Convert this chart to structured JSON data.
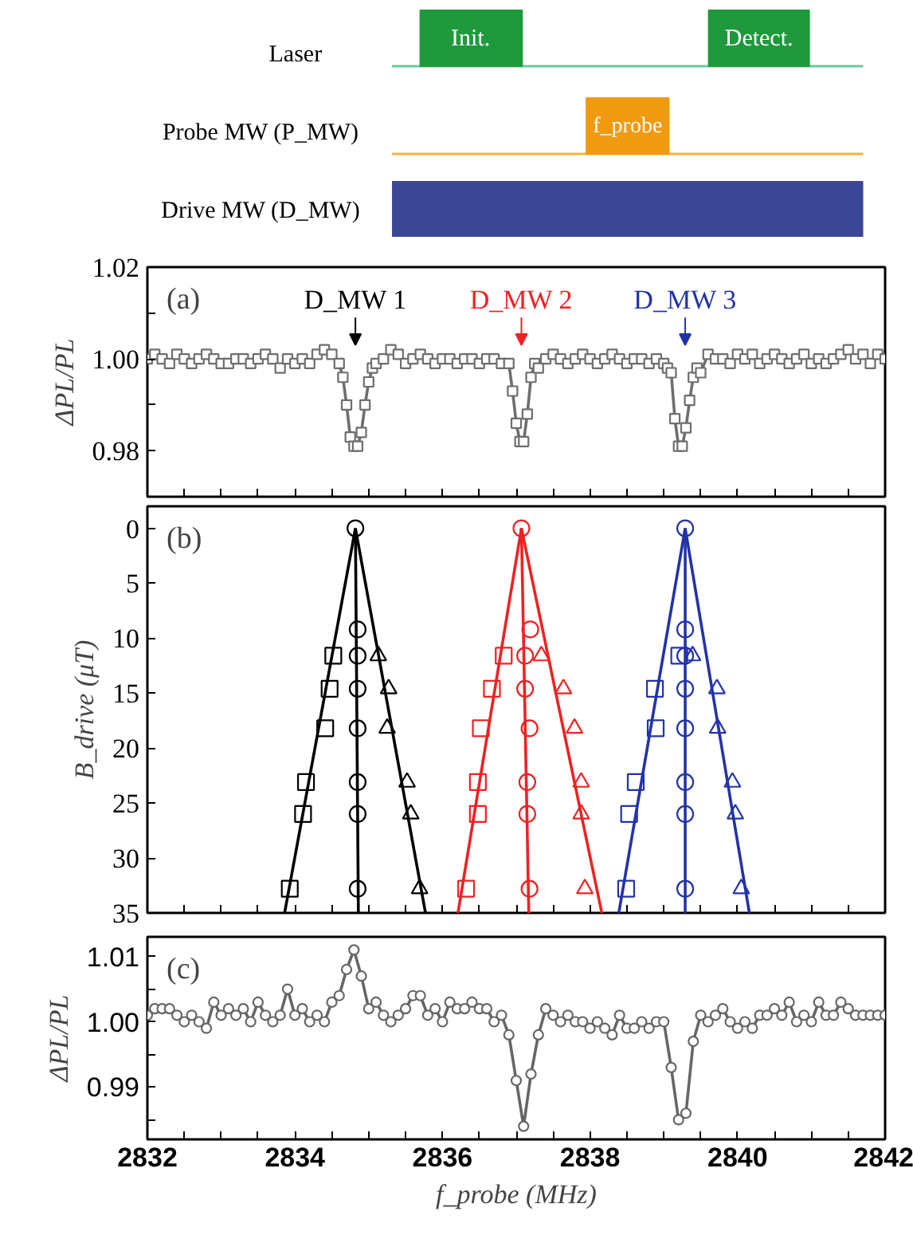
{
  "chart_data": [
    {
      "type": "other",
      "annotations": [
        "Laser",
        "Init.",
        "Detect.",
        "Probe MW (P_MW)",
        "f_probe",
        "Drive MW (D_MW)"
      ]
    },
    {
      "type": "line",
      "marker": "square",
      "color": "#6e6e6e",
      "ylabel": "ΔPL/PL",
      "tick_labels": "y",
      "xlim": [
        2832,
        2842
      ],
      "ylim": [
        0.97,
        1.02
      ],
      "xticks": [
        2832,
        {
          "value": 2832.5,
          "label": null
        },
        {
          "value": 2833,
          "label": null
        },
        {
          "value": 2833.5,
          "label": null
        },
        2834,
        {
          "value": 2834.5,
          "label": null
        },
        {
          "value": 2835,
          "label": null
        },
        {
          "value": 2835.5,
          "label": null
        },
        2836,
        {
          "value": 2836.5,
          "label": null
        },
        {
          "value": 2837,
          "label": null
        },
        {
          "value": 2837.5,
          "label": null
        },
        2838,
        {
          "value": 2838.5,
          "label": null
        },
        {
          "value": 2839,
          "label": null
        },
        {
          "value": 2839.5,
          "label": null
        },
        2840,
        {
          "value": 2840.5,
          "label": null
        },
        {
          "value": 2841,
          "label": null
        },
        {
          "value": 2841.5,
          "label": null
        },
        2842
      ],
      "yticks": [
        {
          "value": 0.98,
          "label": "0.98"
        },
        {
          "value": 0.99,
          "label": null
        },
        {
          "value": 1.0,
          "label": "1.00"
        },
        {
          "value": 1.01,
          "label": null
        },
        {
          "value": 1.02,
          "label": "1.02"
        }
      ],
      "annotations": [
        "(a)",
        "D_MW 1",
        "D_MW 2",
        "D_MW 3"
      ],
      "x": [
        2832.0,
        2832.1,
        2832.2,
        2832.3,
        2832.4,
        2832.5,
        2832.6,
        2832.7,
        2832.8,
        2832.9,
        2833.0,
        2833.1,
        2833.2,
        2833.3,
        2833.4,
        2833.5,
        2833.6,
        2833.7,
        2833.8,
        2833.9,
        2834.0,
        2834.1,
        2834.2,
        2834.3,
        2834.4,
        2834.5,
        2834.6,
        2834.65,
        2834.7,
        2834.75,
        2834.8,
        2834.85,
        2834.9,
        2834.95,
        2835.0,
        2835.05,
        2835.1,
        2835.2,
        2835.3,
        2835.4,
        2835.5,
        2835.6,
        2835.7,
        2835.8,
        2835.9,
        2836.0,
        2836.1,
        2836.2,
        2836.3,
        2836.4,
        2836.5,
        2836.6,
        2836.7,
        2836.8,
        2836.9,
        2836.95,
        2837.0,
        2837.05,
        2837.1,
        2837.15,
        2837.2,
        2837.25,
        2837.3,
        2837.4,
        2837.5,
        2837.6,
        2837.7,
        2837.8,
        2837.9,
        2838.0,
        2838.1,
        2838.2,
        2838.3,
        2838.4,
        2838.5,
        2838.6,
        2838.7,
        2838.8,
        2838.9,
        2839.0,
        2839.05,
        2839.1,
        2839.15,
        2839.2,
        2839.25,
        2839.3,
        2839.35,
        2839.4,
        2839.45,
        2839.5,
        2839.6,
        2839.7,
        2839.8,
        2839.9,
        2840.0,
        2840.1,
        2840.2,
        2840.3,
        2840.4,
        2840.5,
        2840.6,
        2840.7,
        2840.8,
        2840.9,
        2841.0,
        2841.1,
        2841.2,
        2841.3,
        2841.4,
        2841.5,
        2841.6,
        2841.7,
        2841.8,
        2841.9,
        2842.0
      ],
      "values": [
        1.0,
        1.001,
        1.0,
        0.999,
        1.001,
        1.0,
        0.999,
        1.0,
        1.001,
        1.0,
        0.999,
        0.999,
        1.0,
        1.0,
        0.999,
        1.0,
        1.001,
        1.0,
        0.998,
        1.0,
        0.999,
        1.0,
        0.999,
        1.001,
        1.002,
        1.001,
        0.999,
        0.996,
        0.99,
        0.983,
        0.981,
        0.981,
        0.984,
        0.99,
        0.995,
        0.998,
        0.999,
        1.0,
        1.002,
        1.001,
        0.999,
        1.0,
        1.001,
        1.0,
        0.999,
        1.0,
        1.0,
        0.999,
        1.0,
        1.0,
        0.999,
        1.0,
        1.0,
        0.999,
        0.999,
        0.993,
        0.986,
        0.982,
        0.982,
        0.988,
        0.996,
        0.999,
        0.998,
        1.0,
        1.001,
        1.0,
        0.999,
        1.0,
        1.001,
        1.0,
        0.999,
        1.0,
        1.001,
        1.0,
        0.999,
        1.0,
        1.0,
        0.999,
        1.0,
        0.999,
        0.998,
        0.997,
        0.987,
        0.981,
        0.981,
        0.985,
        0.991,
        0.996,
        0.998,
        0.997,
        1.001,
        1.0,
        1.0,
        0.999,
        1.001,
        1.0,
        1.001,
        0.999,
        1.0,
        1.001,
        1.0,
        0.999,
        1.0,
        1.001,
        0.999,
        1.0,
        0.999,
        1.0,
        1.001,
        1.002,
        1.0,
        1.001,
        0.999,
        1.001,
        1.0
      ]
    },
    {
      "type": "scatter",
      "ylabel": "B_drive (μT)",
      "tick_labels": "y",
      "xlim": [
        2832,
        2842
      ],
      "ylim": [
        35,
        -2
      ],
      "xticks": [
        2832,
        {
          "value": 2832.5,
          "label": null
        },
        {
          "value": 2833,
          "label": null
        },
        {
          "value": 2833.5,
          "label": null
        },
        2834,
        {
          "value": 2834.5,
          "label": null
        },
        {
          "value": 2835,
          "label": null
        },
        {
          "value": 2835.5,
          "label": null
        },
        2836,
        {
          "value": 2836.5,
          "label": null
        },
        {
          "value": 2837,
          "label": null
        },
        {
          "value": 2837.5,
          "label": null
        },
        2838,
        {
          "value": 2838.5,
          "label": null
        },
        {
          "value": 2839,
          "label": null
        },
        {
          "value": 2839.5,
          "label": null
        },
        2840,
        {
          "value": 2840.5,
          "label": null
        },
        {
          "value": 2841,
          "label": null
        },
        {
          "value": 2841.5,
          "label": null
        },
        2842
      ],
      "yticks": [
        0,
        5,
        10,
        15,
        20,
        25,
        30,
        35
      ],
      "annotations": [
        "(b)"
      ],
      "series": [
        {
          "type": "scatter",
          "marker": "circle",
          "color": "#000000",
          "x": [
            2834.82,
            2834.85,
            2834.85,
            2834.85,
            2834.85,
            2834.85,
            2834.85,
            2834.85
          ],
          "values": [
            0,
            9.2,
            11.6,
            14.6,
            18.2,
            23.1,
            26.0,
            32.8
          ]
        },
        {
          "type": "scatter",
          "marker": "square",
          "color": "#000000",
          "x": [
            2834.52,
            2834.47,
            2834.41,
            2834.15,
            2834.11,
            2833.93
          ],
          "values": [
            11.6,
            14.6,
            18.2,
            23.1,
            26.0,
            32.8
          ]
        },
        {
          "type": "scatter",
          "marker": "triangle",
          "color": "#000000",
          "x": [
            2835.13,
            2835.27,
            2835.25,
            2835.52,
            2835.57,
            2835.69
          ],
          "values": [
            11.6,
            14.6,
            18.2,
            23.1,
            26.0,
            32.8
          ]
        },
        {
          "type": "line",
          "marker": "none",
          "color": "#000000",
          "x": [
            2834.82,
            2833.86
          ],
          "values": [
            0,
            35
          ]
        },
        {
          "type": "line",
          "marker": "none",
          "color": "#000000",
          "x": [
            2834.82,
            2834.86
          ],
          "values": [
            0,
            35
          ]
        },
        {
          "type": "line",
          "marker": "none",
          "color": "#000000",
          "x": [
            2834.82,
            2835.77
          ],
          "values": [
            0,
            35
          ]
        },
        {
          "type": "scatter",
          "marker": "circle",
          "color": "#ee2222",
          "x": [
            2837.07,
            2837.19,
            2837.12,
            2837.12,
            2837.18,
            2837.15,
            2837.15,
            2837.18
          ],
          "values": [
            0,
            9.2,
            11.6,
            14.6,
            18.2,
            23.1,
            26.0,
            32.8
          ]
        },
        {
          "type": "scatter",
          "marker": "square",
          "color": "#ee2222",
          "x": [
            2836.83,
            2836.67,
            2836.52,
            2836.48,
            2836.48,
            2836.32
          ],
          "values": [
            11.6,
            14.6,
            18.2,
            23.1,
            26.0,
            32.8
          ]
        },
        {
          "type": "scatter",
          "marker": "triangle",
          "color": "#ee2222",
          "x": [
            2837.34,
            2837.64,
            2837.79,
            2837.88,
            2837.88,
            2837.93
          ],
          "values": [
            11.6,
            14.6,
            18.2,
            23.1,
            26.0,
            32.8
          ]
        },
        {
          "type": "line",
          "marker": "none",
          "color": "#ee2222",
          "x": [
            2837.07,
            2836.21
          ],
          "values": [
            0,
            35
          ]
        },
        {
          "type": "line",
          "marker": "none",
          "color": "#ee2222",
          "x": [
            2837.07,
            2837.17
          ],
          "values": [
            0,
            35
          ]
        },
        {
          "type": "line",
          "marker": "none",
          "color": "#ee2222",
          "x": [
            2837.07,
            2838.16
          ],
          "values": [
            0,
            35
          ]
        },
        {
          "type": "scatter",
          "marker": "circle",
          "color": "#2233aa",
          "x": [
            2839.29,
            2839.29,
            2839.29,
            2839.29,
            2839.29,
            2839.29,
            2839.29,
            2839.29
          ],
          "values": [
            0,
            9.2,
            11.6,
            14.6,
            18.2,
            23.1,
            26.0,
            32.8
          ]
        },
        {
          "type": "scatter",
          "marker": "square",
          "color": "#2233aa",
          "x": [
            2839.21,
            2838.88,
            2838.89,
            2838.62,
            2838.53,
            2838.49
          ],
          "values": [
            11.6,
            14.6,
            18.2,
            23.1,
            26.0,
            32.8
          ]
        },
        {
          "type": "scatter",
          "marker": "triangle",
          "color": "#2233aa",
          "x": [
            2839.39,
            2839.72,
            2839.73,
            2839.93,
            2839.97,
            2840.05
          ],
          "values": [
            11.6,
            14.6,
            18.2,
            23.1,
            26.0,
            32.8
          ]
        },
        {
          "type": "line",
          "marker": "none",
          "color": "#2233aa",
          "x": [
            2839.29,
            2838.39
          ],
          "values": [
            0,
            35
          ]
        },
        {
          "type": "line",
          "marker": "none",
          "color": "#2233aa",
          "x": [
            2839.29,
            2839.29
          ],
          "values": [
            0,
            35
          ]
        },
        {
          "type": "line",
          "marker": "none",
          "color": "#2233aa",
          "x": [
            2839.29,
            2840.16
          ],
          "values": [
            0,
            35
          ]
        }
      ]
    },
    {
      "type": "line",
      "marker": "circle",
      "color": "#666666",
      "xlabel": "f_probe (MHz)",
      "ylabel": "ΔPL/PL",
      "xlim": [
        2832,
        2842
      ],
      "ylim": [
        0.982,
        1.013
      ],
      "xticks": [
        2832,
        {
          "value": 2832.5,
          "label": null
        },
        {
          "value": 2833,
          "label": null
        },
        {
          "value": 2833.5,
          "label": null
        },
        2834,
        {
          "value": 2834.5,
          "label": null
        },
        {
          "value": 2835,
          "label": null
        },
        {
          "value": 2835.5,
          "label": null
        },
        2836,
        {
          "value": 2836.5,
          "label": null
        },
        {
          "value": 2837,
          "label": null
        },
        {
          "value": 2837.5,
          "label": null
        },
        2838,
        {
          "value": 2838.5,
          "label": null
        },
        {
          "value": 2839,
          "label": null
        },
        {
          "value": 2839.5,
          "label": null
        },
        2840,
        {
          "value": 2840.5,
          "label": null
        },
        {
          "value": 2841,
          "label": null
        },
        {
          "value": 2841.5,
          "label": null
        },
        2842
      ],
      "yticks": [
        {
          "value": 0.985,
          "label": null
        },
        {
          "value": 0.99,
          "label": "0.99"
        },
        {
          "value": 0.995,
          "label": null
        },
        {
          "value": 1.0,
          "label": "1.00"
        },
        {
          "value": 1.005,
          "label": null
        },
        {
          "value": 1.01,
          "label": "1.01"
        }
      ],
      "annotations": [
        "(c)"
      ],
      "x": [
        2832.0,
        2832.1,
        2832.2,
        2832.3,
        2832.4,
        2832.5,
        2832.6,
        2832.7,
        2832.8,
        2832.9,
        2833.0,
        2833.1,
        2833.2,
        2833.3,
        2833.4,
        2833.5,
        2833.6,
        2833.7,
        2833.8,
        2833.9,
        2834.0,
        2834.1,
        2834.2,
        2834.3,
        2834.4,
        2834.5,
        2834.6,
        2834.7,
        2834.8,
        2834.9,
        2835.0,
        2835.1,
        2835.2,
        2835.3,
        2835.4,
        2835.5,
        2835.6,
        2835.7,
        2835.8,
        2835.9,
        2836.0,
        2836.1,
        2836.2,
        2836.3,
        2836.4,
        2836.5,
        2836.6,
        2836.7,
        2836.8,
        2836.9,
        2837.0,
        2837.1,
        2837.2,
        2837.3,
        2837.4,
        2837.5,
        2837.6,
        2837.7,
        2837.8,
        2837.9,
        2838.0,
        2838.1,
        2838.2,
        2838.3,
        2838.4,
        2838.5,
        2838.6,
        2838.7,
        2838.8,
        2838.9,
        2839.0,
        2839.1,
        2839.2,
        2839.3,
        2839.4,
        2839.5,
        2839.6,
        2839.7,
        2839.8,
        2839.9,
        2840.0,
        2840.1,
        2840.2,
        2840.3,
        2840.4,
        2840.5,
        2840.6,
        2840.7,
        2840.8,
        2840.9,
        2841.0,
        2841.1,
        2841.2,
        2841.3,
        2841.4,
        2841.5,
        2841.6,
        2841.7,
        2841.8,
        2841.9,
        2842.0
      ],
      "values": [
        1.001,
        1.002,
        1.002,
        1.002,
        1.001,
        1.0,
        1.001,
        1.0,
        0.999,
        1.003,
        1.001,
        1.002,
        1.001,
        1.002,
        1.0,
        1.003,
        1.001,
        1.0,
        1.001,
        1.005,
        1.001,
        1.002,
        1.0,
        1.001,
        1.0,
        1.003,
        1.004,
        1.008,
        1.011,
        1.007,
        1.002,
        1.003,
        1.001,
        1.0,
        1.001,
        1.002,
        1.004,
        1.004,
        1.001,
        1.002,
        1.0,
        1.003,
        1.002,
        1.002,
        1.003,
        1.002,
        1.002,
        1.0,
        1.001,
        0.998,
        0.991,
        0.984,
        0.992,
        0.998,
        1.002,
        1.001,
        1.0,
        1.001,
        1.0,
        1.0,
        0.999,
        1.0,
        0.999,
        0.998,
        1.001,
        0.999,
        0.999,
        1.0,
        0.999,
        1.0,
        1.0,
        0.993,
        0.985,
        0.986,
        0.997,
        1.001,
        1.0,
        1.001,
        1.002,
        1.0,
        0.999,
        1.0,
        0.999,
        1.001,
        1.001,
        1.002,
        1.001,
        1.003,
        1.0,
        1.001,
        1.0,
        1.003,
        1.001,
        1.001,
        1.003,
        1.002,
        1.001,
        1.001,
        1.001,
        1.001,
        1.001
      ]
    }
  ]
}
